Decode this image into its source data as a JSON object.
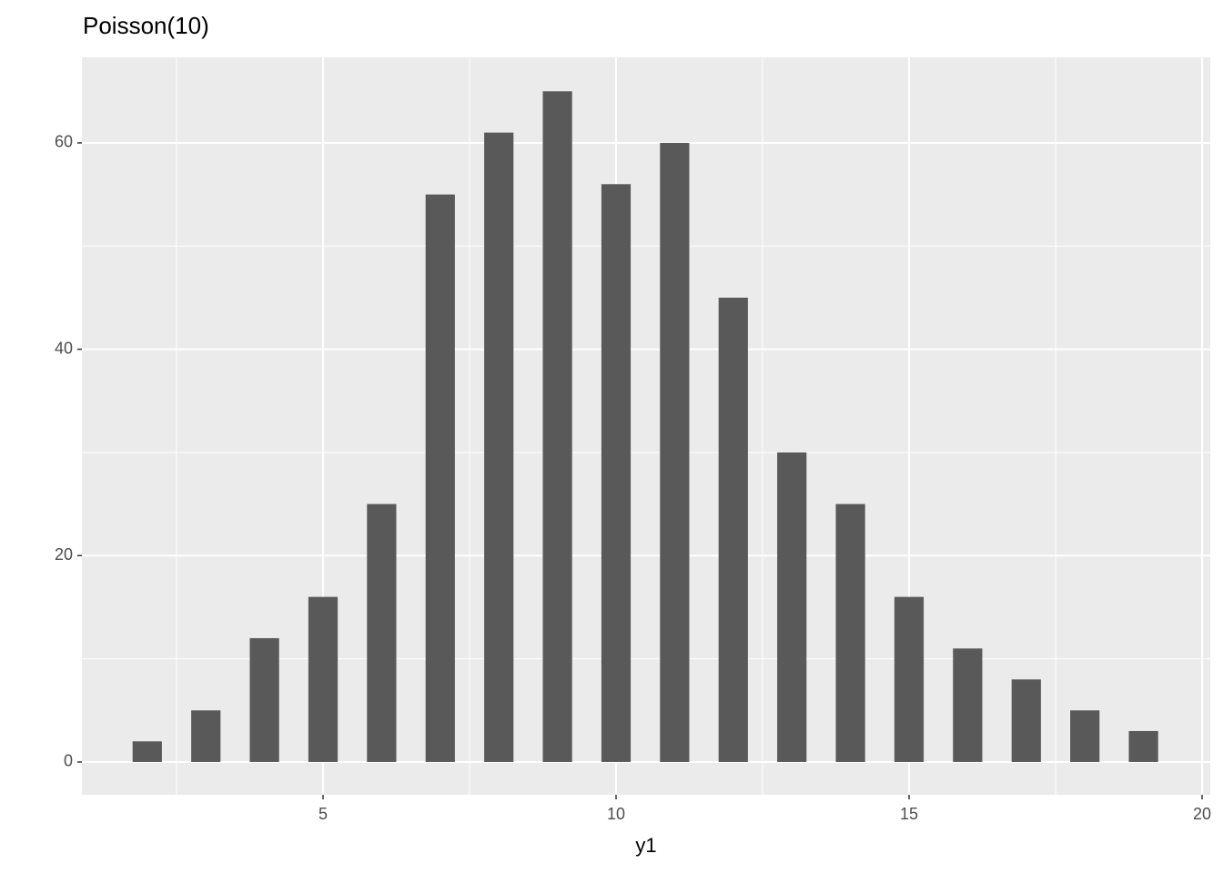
{
  "chart_data": {
    "type": "bar",
    "title": "Poisson(10)",
    "x_label": "y1",
    "x": [
      2,
      3,
      4,
      5,
      6,
      7,
      8,
      9,
      10,
      11,
      12,
      13,
      14,
      15,
      16,
      17,
      18,
      19
    ],
    "values": [
      2,
      5,
      12,
      16,
      25,
      55,
      61,
      65,
      56,
      60,
      45,
      30,
      25,
      16,
      11,
      8,
      5,
      3
    ],
    "color": "#595959",
    "xlim": [
      0.885,
      20.14
    ],
    "xticks": [
      5,
      10,
      15,
      20
    ],
    "ylim": [
      -3.18,
      68.29
    ],
    "yticks": [
      0,
      20,
      40,
      60
    ],
    "grid": true
  }
}
